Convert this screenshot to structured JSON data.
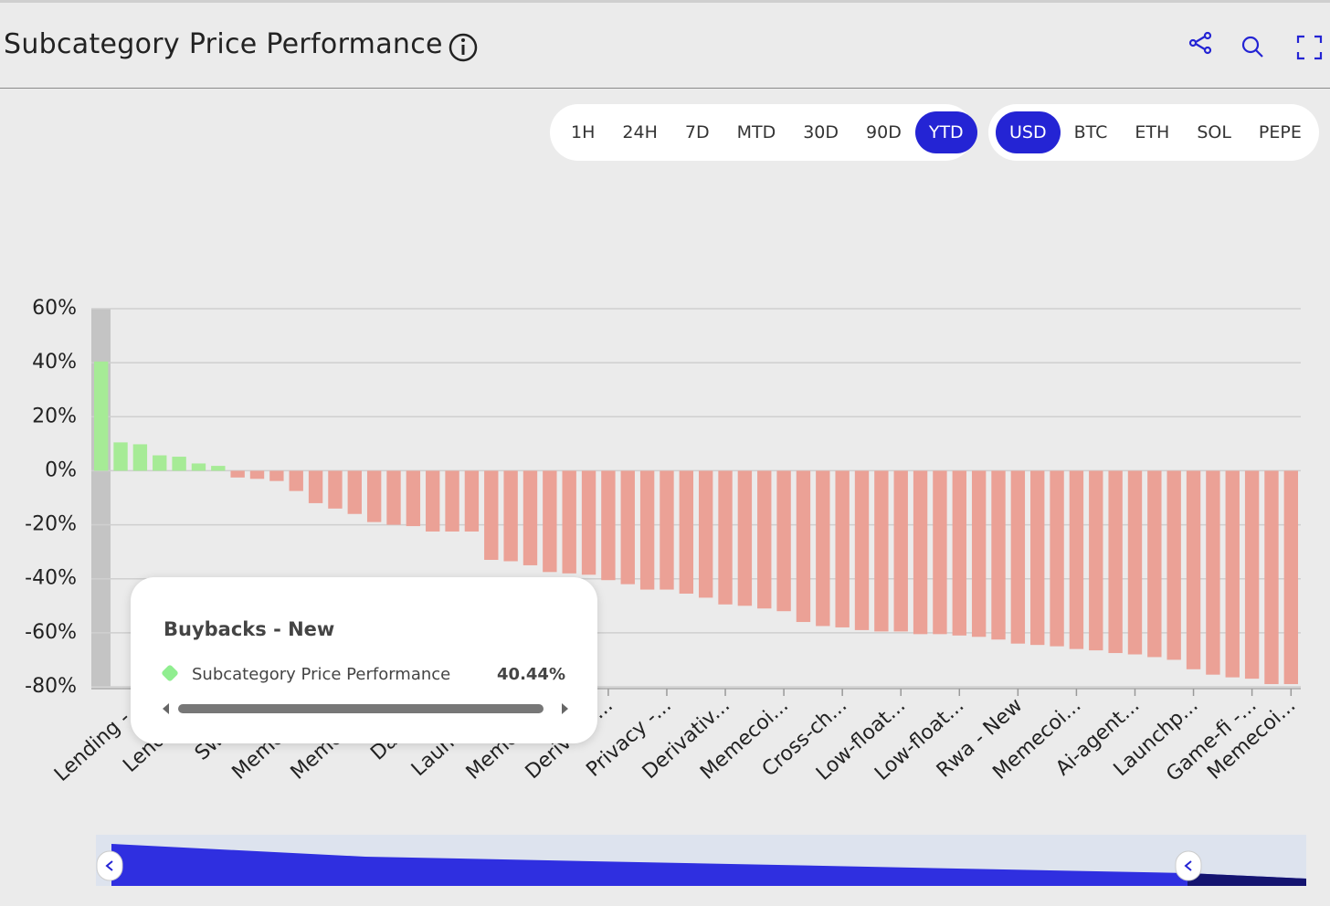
{
  "header": {
    "title": "Subcategory Price Performance"
  },
  "timeframes": [
    "1H",
    "24H",
    "7D",
    "MTD",
    "30D",
    "90D",
    "YTD"
  ],
  "active_timeframe": 6,
  "currencies": [
    "USD",
    "BTC",
    "ETH",
    "SOL",
    "PEPE"
  ],
  "active_currency": 0,
  "tooltip": {
    "title": "Buybacks - New",
    "series_name": "Subcategory Price Performance",
    "value": "40.44%"
  },
  "chart_data": {
    "type": "bar",
    "ylim": [
      -80,
      60
    ],
    "yticks": [
      {
        "value": 60,
        "label": "60%"
      },
      {
        "value": 40,
        "label": "40%"
      },
      {
        "value": 20,
        "label": "20%"
      },
      {
        "value": 0,
        "label": "0%"
      },
      {
        "value": -20,
        "label": "-20%"
      },
      {
        "value": -40,
        "label": "-40%"
      },
      {
        "value": -60,
        "label": "-60%"
      },
      {
        "value": -80,
        "label": "-80%"
      }
    ],
    "grid": true,
    "positive_color": "#a6eb96",
    "negative_color": "#eba196",
    "categories": [
      null,
      null,
      "Lending -...",
      null,
      null,
      "Lending...",
      null,
      null,
      "Sweet...",
      null,
      null,
      "Memecoi...",
      null,
      null,
      "Memecoi...",
      null,
      null,
      "Data -...",
      null,
      null,
      "Launchp...",
      null,
      null,
      "Memecoi...",
      null,
      null,
      "Derivativ...",
      null,
      null,
      "Privacy -...",
      null,
      null,
      "Derivativ...",
      null,
      null,
      "Memecoi...",
      null,
      null,
      "Cross-ch...",
      null,
      null,
      "Low-float...",
      null,
      null,
      "Low-float...",
      null,
      null,
      "Rwa - New",
      null,
      null,
      "Memecoi...",
      null,
      null,
      "Ai-agent...",
      null,
      null,
      "Launchp...",
      null,
      null,
      "Game-fi -...",
      null,
      "Memecoi..."
    ],
    "series": [
      {
        "name": "Subcategory Price Performance",
        "values": [
          40.44,
          10.5,
          9.8,
          5.7,
          5.2,
          2.7,
          1.8,
          -2.5,
          -3,
          -3.8,
          -7.5,
          -12,
          -14,
          -16,
          -19,
          -20,
          -20.5,
          -22.5,
          -22.5,
          -22.5,
          -33,
          -33.5,
          -35,
          -37.5,
          -38,
          -38.5,
          -40.5,
          -42,
          -44,
          -44,
          -45.5,
          -47,
          -49.5,
          -50,
          -51,
          -52,
          -56,
          -57.5,
          -58,
          -59,
          -59.5,
          -59.5,
          -60.5,
          -60.5,
          -61,
          -61.5,
          -62.5,
          -64,
          -64.5,
          -65,
          -66,
          -66.5,
          -67.5,
          -68,
          -69,
          -70,
          -73.5,
          -75.5,
          -76.5,
          -77,
          -79,
          -79
        ]
      }
    ]
  }
}
